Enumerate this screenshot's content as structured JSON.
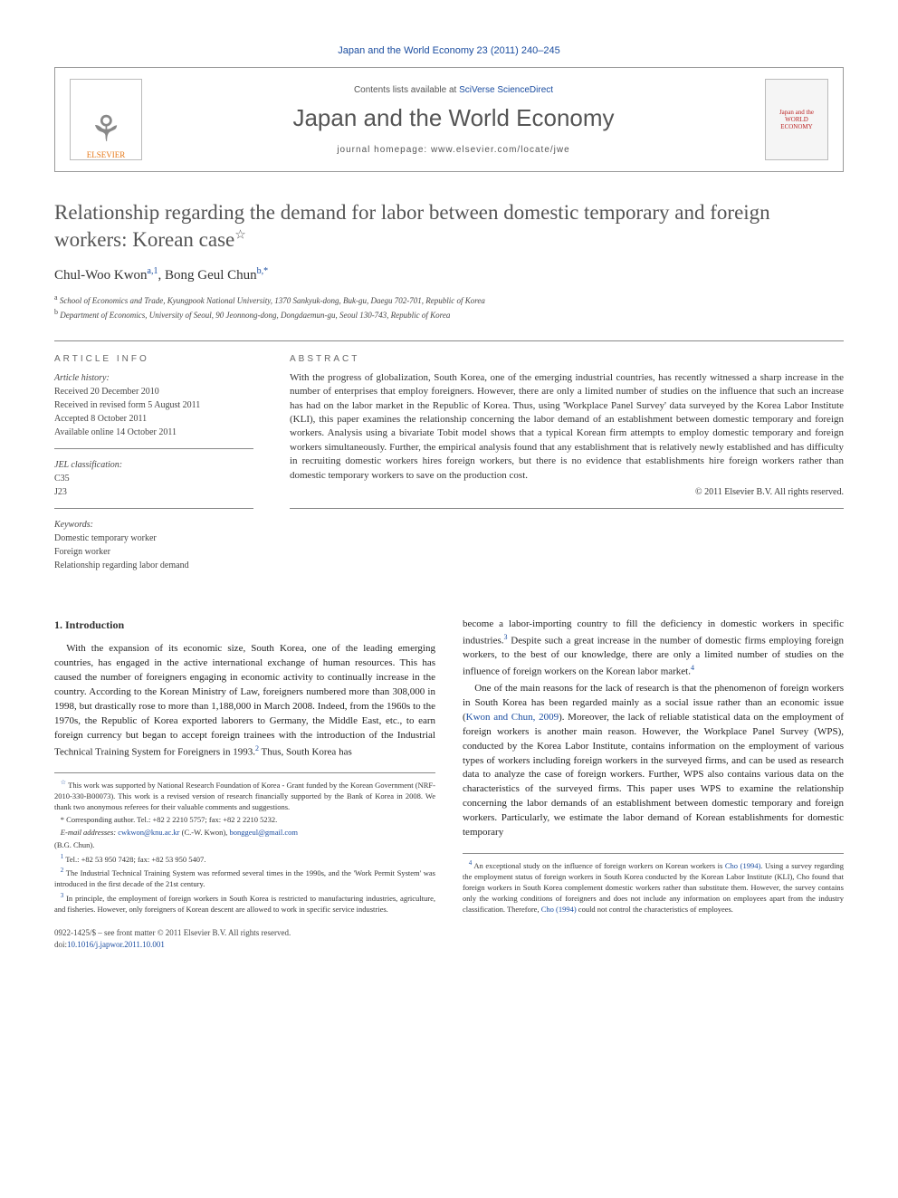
{
  "journal_header": "Japan and the World Economy 23 (2011) 240–245",
  "header": {
    "contents_prefix": "Contents lists available at ",
    "contents_link": "SciVerse ScienceDirect",
    "journal_name": "Japan and the World Economy",
    "homepage": "journal homepage: www.elsevier.com/locate/jwe",
    "publisher_logo_text": "ELSEVIER",
    "cover_logo_text": "Japan and the WORLD ECONOMY"
  },
  "title": "Relationship regarding the demand for labor between domestic temporary and foreign workers: Korean case",
  "title_star": "☆",
  "authors_html": "Chul-Woo Kwon",
  "author1": "Chul-Woo Kwon",
  "author1_sup": "a,1",
  "author_sep": ", ",
  "author2": "Bong Geul Chun",
  "author2_sup": "b,*",
  "affiliations": {
    "a": "School of Economics and Trade, Kyungpook National University, 1370 Sankyuk-dong, Buk-gu, Daegu 702-701, Republic of Korea",
    "b": "Department of Economics, University of Seoul, 90 Jeonnong-dong, Dongdaemun-gu, Seoul 130-743, Republic of Korea"
  },
  "article_info": {
    "label": "ARTICLE INFO",
    "history_label": "Article history:",
    "received": "Received 20 December 2010",
    "revised": "Received in revised form 5 August 2011",
    "accepted": "Accepted 8 October 2011",
    "online": "Available online 14 October 2011",
    "jel_label": "JEL classification:",
    "jel1": "C35",
    "jel2": "J23",
    "keywords_label": "Keywords:",
    "kw1": "Domestic temporary worker",
    "kw2": "Foreign worker",
    "kw3": "Relationship regarding labor demand"
  },
  "abstract": {
    "label": "ABSTRACT",
    "text": "With the progress of globalization, South Korea, one of the emerging industrial countries, has recently witnessed a sharp increase in the number of enterprises that employ foreigners. However, there are only a limited number of studies on the influence that such an increase has had on the labor market in the Republic of Korea. Thus, using 'Workplace Panel Survey' data surveyed by the Korea Labor Institute (KLI), this paper examines the relationship concerning the labor demand of an establishment between domestic temporary and foreign workers. Analysis using a bivariate Tobit model shows that a typical Korean firm attempts to employ domestic temporary and foreign workers simultaneously. Further, the empirical analysis found that any establishment that is relatively newly established and has difficulty in recruiting domestic workers hires foreign workers, but there is no evidence that establishments hire foreign workers rather than domestic temporary workers to save on the production cost.",
    "copyright": "© 2011 Elsevier B.V. All rights reserved."
  },
  "body": {
    "section_title": "1. Introduction",
    "col1_p1": "With the expansion of its economic size, South Korea, one of the leading emerging countries, has engaged in the active international exchange of human resources. This has caused the number of foreigners engaging in economic activity to continually increase in the country. According to the Korean Ministry of Law, foreigners numbered more than 308,000 in 1998, but drastically rose to more than 1,188,000 in March 2008. Indeed, from the 1960s to the 1970s, the Republic of Korea exported laborers to Germany, the Middle East, etc., to earn foreign currency but began to accept foreign trainees with the introduction of the Industrial Technical Training System for Foreigners in 1993.",
    "col1_p1_sup": "2",
    "col1_p1_tail": " Thus, South Korea has",
    "col2_p0": "become a labor-importing country to fill the deficiency in domestic workers in specific industries.",
    "col2_p0_sup": "3",
    "col2_p0_tail": " Despite such a great increase in the number of domestic firms employing foreign workers, to the best of our knowledge, there are only a limited number of studies on the influence of foreign workers on the Korean labor market.",
    "col2_p0_sup2": "4",
    "col2_p1": "One of the main reasons for the lack of research is that the phenomenon of foreign workers in South Korea has been regarded mainly as a social issue rather than an economic issue (",
    "col2_p1_cite": "Kwon and Chun, 2009",
    "col2_p1_tail": "). Moreover, the lack of reliable statistical data on the employment of foreign workers is another main reason. However, the Workplace Panel Survey (WPS), conducted by the Korea Labor Institute, contains information on the employment of various types of workers including foreign workers in the surveyed firms, and can be used as research data to analyze the case of foreign workers. Further, WPS also contains various data on the characteristics of the surveyed firms. This paper uses WPS to examine the relationship concerning the labor demands of an establishment between domestic temporary and foreign workers. Particularly, we estimate the labor demand of Korean establishments for domestic temporary"
  },
  "footnotes_left": {
    "star": "This work was supported by National Research Foundation of Korea - Grant funded by the Korean Government (NRF-2010-330-B00073). This work is a revised version of research financially supported by the Bank of Korea in 2008. We thank two anonymous referees for their valuable comments and suggestions.",
    "corr_label": "* Corresponding author. Tel.: +82 2 2210 5757; fax: +82 2 2210 5232.",
    "email_label": "E-mail addresses:",
    "email1": "cwkwon@knu.ac.kr",
    "email1_owner": " (C.-W. Kwon), ",
    "email2": "bonggeul@gmail.com",
    "email2_owner": "(B.G. Chun).",
    "fn1": "Tel.: +82 53 950 7428; fax: +82 53 950 5407.",
    "fn2": "The Industrial Technical Training System was reformed several times in the 1990s, and the 'Work Permit System' was introduced in the first decade of the 21st century.",
    "fn3": "In principle, the employment of foreign workers in South Korea is restricted to manufacturing industries, agriculture, and fisheries. However, only foreigners of Korean descent are allowed to work in specific service industries."
  },
  "footnotes_right": {
    "fn4_a": "An exceptional study on the influence of foreign workers on Korean workers is ",
    "fn4_cite1": "Cho (1994)",
    "fn4_b": ". Using a survey regarding the employment status of foreign workers in South Korea conducted by the Korean Labor Institute (KLI), Cho found that foreign workers in South Korea complement domestic workers rather than substitute them. However, the survey contains only the working conditions of foreigners and does not include any information on employees apart from the industry classification. Therefore, ",
    "fn4_cite2": "Cho (1994)",
    "fn4_c": " could not control the characteristics of employees."
  },
  "bottom": {
    "issn_line": "0922-1425/$ – see front matter © 2011 Elsevier B.V. All rights reserved.",
    "doi_prefix": "doi:",
    "doi": "10.1016/j.japwor.2011.10.001"
  },
  "colors": {
    "link": "#1b4da0",
    "text": "#333333",
    "rule": "#888888",
    "publisher": "#e67817"
  }
}
